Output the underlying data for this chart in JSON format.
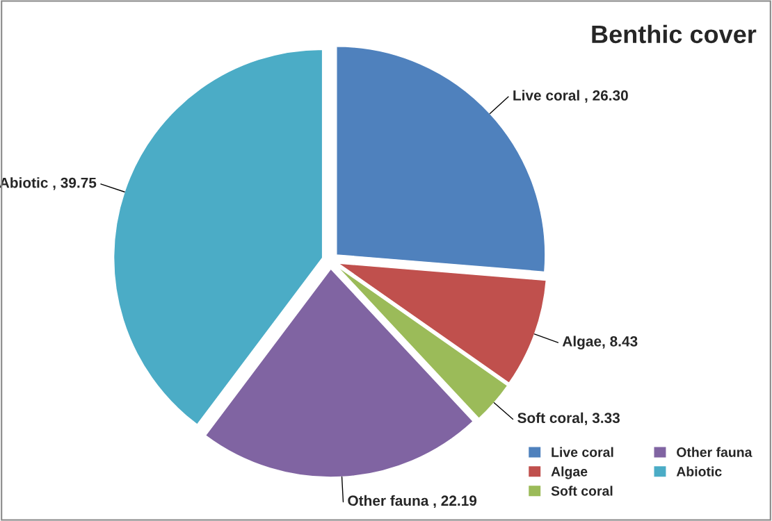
{
  "chart_data": {
    "type": "pie",
    "title": "Benthic cover",
    "categories": [
      "Live coral",
      "Algae",
      "Soft coral",
      "Other fauna",
      "Abiotic"
    ],
    "values": [
      26.3,
      8.43,
      3.33,
      22.19,
      39.75
    ],
    "colors": [
      "#4f81bd",
      "#c0504d",
      "#9bbb59",
      "#8064a2",
      "#4bacc6"
    ],
    "value_labels": [
      "Live coral , 26.30",
      "Algae, 8.43",
      "Soft coral, 3.33",
      "Other fauna , 22.19",
      "Abiotic , 39.75"
    ],
    "legend": "bottom right"
  }
}
